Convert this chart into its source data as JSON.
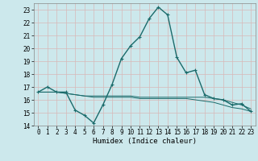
{
  "xlabel": "Humidex (Indice chaleur)",
  "ylabel": "",
  "bg_color": "#cce8ec",
  "grid_color": "#b0d4d8",
  "line_color": "#1a6b6b",
  "xlim": [
    -0.5,
    23.5
  ],
  "ylim": [
    14,
    23.5
  ],
  "xticks": [
    0,
    1,
    2,
    3,
    4,
    5,
    6,
    7,
    8,
    9,
    10,
    11,
    12,
    13,
    14,
    15,
    16,
    17,
    18,
    19,
    20,
    21,
    22,
    23
  ],
  "yticks": [
    14,
    15,
    16,
    17,
    18,
    19,
    20,
    21,
    22,
    23
  ],
  "curve1_x": [
    0,
    1,
    2,
    3,
    4,
    5,
    6,
    7,
    8,
    9,
    10,
    11,
    12,
    13,
    14,
    15,
    16,
    17,
    18,
    19,
    20,
    21,
    22,
    23
  ],
  "curve1_y": [
    16.6,
    17.0,
    16.6,
    16.6,
    15.2,
    14.8,
    14.2,
    15.6,
    17.2,
    19.2,
    20.2,
    20.9,
    22.3,
    23.2,
    22.6,
    19.3,
    18.1,
    18.3,
    16.4,
    16.1,
    16.0,
    15.6,
    15.7,
    15.1
  ],
  "curve2_x": [
    0,
    1,
    2,
    3,
    4,
    5,
    6,
    7,
    8,
    9,
    10,
    11,
    12,
    13,
    14,
    15,
    16,
    17,
    18,
    19,
    20,
    21,
    22,
    23
  ],
  "curve2_y": [
    16.6,
    16.6,
    16.6,
    16.5,
    16.4,
    16.3,
    16.3,
    16.3,
    16.3,
    16.3,
    16.3,
    16.2,
    16.2,
    16.2,
    16.2,
    16.2,
    16.2,
    16.2,
    16.2,
    16.1,
    16.0,
    15.8,
    15.6,
    15.3
  ],
  "curve3_x": [
    0,
    1,
    2,
    3,
    4,
    5,
    6,
    7,
    8,
    9,
    10,
    11,
    12,
    13,
    14,
    15,
    16,
    17,
    18,
    19,
    20,
    21,
    22,
    23
  ],
  "curve3_y": [
    16.6,
    16.6,
    16.6,
    16.5,
    16.4,
    16.3,
    16.2,
    16.2,
    16.2,
    16.2,
    16.2,
    16.1,
    16.1,
    16.1,
    16.1,
    16.1,
    16.1,
    16.0,
    15.9,
    15.8,
    15.6,
    15.4,
    15.3,
    15.1
  ],
  "tick_fontsize": 5.5,
  "xlabel_fontsize": 6.5
}
